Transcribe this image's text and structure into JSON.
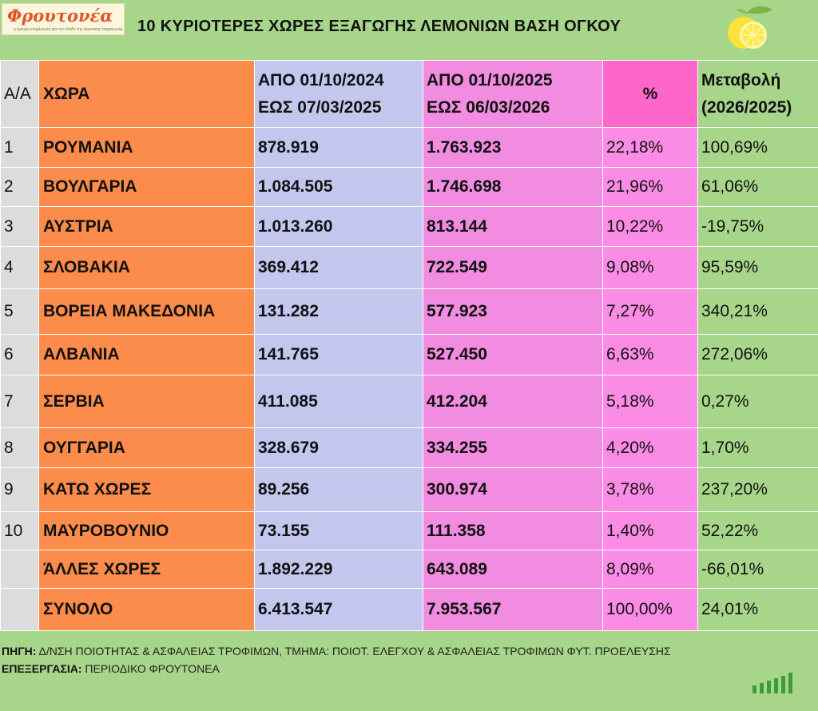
{
  "logo": {
    "brand": "Φρουτονέα",
    "tagline": "η έγκυρη ενημέρωση για τον κλάδο της αγροτικής παραγωγής"
  },
  "title": "10 ΚΥΡΙΟΤΕΡΕΣ ΧΩΡΕΣ ΕΞΑΓΩΓΗΣ ΛΕΜΟΝΙΩΝ ΒΑΣΗ ΟΓΚΟΥ",
  "table": {
    "headers": {
      "num": "Α/Α",
      "country": "ΧΩΡΑ",
      "period1_line1": "ΑΠΟ 01/10/2024",
      "period1_line2": "ΕΩΣ  07/03/2025",
      "period2_line1": "ΑΠΟ 01/10/2025",
      "period2_line2": "ΕΩΣ  06/03/2026",
      "share": "%",
      "change_line1": "Μεταβολή",
      "change_line2": "(2026/2025)"
    },
    "rows": [
      {
        "num": "1",
        "country": "ΡΟΥΜΑΝΙΑ",
        "v2025": "878.919",
        "v2026": "1.763.923",
        "share": "22,18%",
        "change": "100,69%"
      },
      {
        "num": "2",
        "country": "ΒΟΥΛΓΑΡΙΑ",
        "v2025": "1.084.505",
        "v2026": "1.746.698",
        "share": "21,96%",
        "change": "61,06%"
      },
      {
        "num": "3",
        "country": "ΑΥΣΤΡΙΑ",
        "v2025": "1.013.260",
        "v2026": "813.144",
        "share": "10,22%",
        "change": "-19,75%"
      },
      {
        "num": "4",
        "country": "ΣΛΟΒΑΚΙΑ",
        "v2025": "369.412",
        "v2026": "722.549",
        "share": "9,08%",
        "change": "95,59%"
      },
      {
        "num": "5",
        "country": "ΒΟΡΕΙΑ ΜΑΚΕΔΟΝΙΑ",
        "v2025": "131.282",
        "v2026": "577.923",
        "share": "7,27%",
        "change": "340,21%"
      },
      {
        "num": "6",
        "country": "ΑΛΒΑΝΙΑ",
        "v2025": "141.765",
        "v2026": "527.450",
        "share": "6,63%",
        "change": "272,06%"
      },
      {
        "num": "7",
        "country": "ΣΕΡΒΙΑ",
        "v2025": "411.085",
        "v2026": "412.204",
        "share": "5,18%",
        "change": "0,27%"
      },
      {
        "num": "8",
        "country": "ΟΥΓΓΑΡΙΑ",
        "v2025": "328.679",
        "v2026": "334.255",
        "share": "4,20%",
        "change": "1,70%"
      },
      {
        "num": "9",
        "country": "ΚΑΤΩ ΧΩΡΕΣ",
        "v2025": "89.256",
        "v2026": "300.974",
        "share": "3,78%",
        "change": "237,20%"
      },
      {
        "num": "10",
        "country": "ΜΑΥΡΟΒΟΥΝΙΟ",
        "v2025": "73.155",
        "v2026": "111.358",
        "share": "1,40%",
        "change": "52,22%"
      },
      {
        "num": "",
        "country": "ΆΛΛΕΣ ΧΩΡΕΣ",
        "v2025": "1.892.229",
        "v2026": "643.089",
        "share": "8,09%",
        "change": "-66,01%"
      },
      {
        "num": "",
        "country": "ΣΥΝΟΛΟ",
        "v2025": "6.413.547",
        "v2026": "7.953.567",
        "share": "100,00%",
        "change": "24,01%"
      }
    ]
  },
  "footer": {
    "source_label": "ΠΗΓΗ:",
    "source_text": " Δ/ΝΣΗ ΠΟΙΟΤΗΤΑΣ & ΑΣΦΑΛΕΙΑΣ ΤΡΟΦΙΜΩΝ, ΤΜΗΜΑ: ΠΟΙΟΤ. ΕΛΕΓΧΟΥ & ΑΣΦΑΛΕΙΑΣ ΤΡΟΦΙΜΩΝ ΦΥΤ. ΠΡΟΕΛΕΥΣΗΣ",
    "processing_label": "ΕΠΕΞΕΡΓΑΣΙΑ:",
    "processing_text": " ΠΕΡΙΟΔΙΚΟ ΦΡΟΥΤΟΝΕΑ"
  },
  "colors": {
    "background": "#a7d58a",
    "country_col": "#fb8c4b",
    "period1_col": "#c3c7ee",
    "period2_col": "#f18ce1",
    "share_col": "#fb8ce5",
    "share_header": "#ff66c9",
    "brand": "#e3542b"
  },
  "icons": {
    "lemon": "lemon-icon",
    "bars": "bar-chart-icon"
  }
}
